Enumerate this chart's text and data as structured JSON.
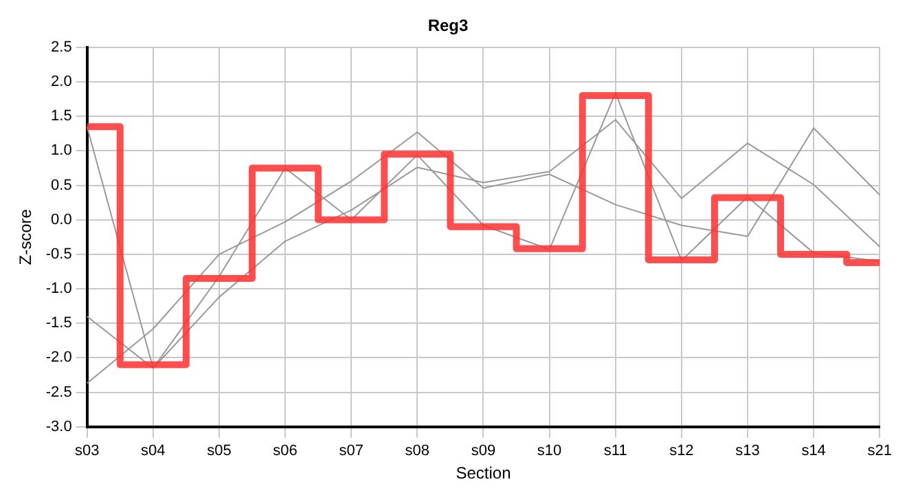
{
  "chart_data": {
    "type": "line",
    "title": "Reg3",
    "xlabel": "Section",
    "ylabel": "Z-score",
    "categories": [
      "s03",
      "s04",
      "s05",
      "s06",
      "s07",
      "s08",
      "s09",
      "s10",
      "s11",
      "s12",
      "s13",
      "s14",
      "s21"
    ],
    "series": [
      {
        "color": "#999999",
        "values": [
          1.35,
          -2.15,
          -0.82,
          0.75,
          0.0,
          0.94,
          -0.08,
          -0.43,
          1.84,
          -0.59,
          0.33,
          -0.48,
          -0.6
        ]
      },
      {
        "color": "#999999",
        "values": [
          -1.4,
          -2.15,
          -1.12,
          -0.31,
          0.14,
          0.76,
          0.54,
          0.7,
          1.45,
          0.31,
          1.11,
          0.51,
          -0.39
        ]
      },
      {
        "color": "#999999",
        "values": [
          -2.37,
          -1.58,
          -0.5,
          -0.03,
          0.56,
          1.27,
          0.46,
          0.66,
          0.22,
          -0.08,
          -0.24,
          1.33,
          0.36
        ]
      },
      {
        "type": "step",
        "color": "#ff3333",
        "values": [
          1.35,
          -2.1,
          -0.85,
          0.75,
          0.0,
          0.95,
          -0.1,
          -0.42,
          1.8,
          -0.58,
          0.32,
          -0.5,
          -0.62
        ]
      }
    ],
    "ylim": [
      -3.0,
      2.5
    ],
    "yticks": [
      {
        "value": -3.0,
        "label": "-3.0"
      },
      {
        "value": -2.5,
        "label": "-2.5"
      },
      {
        "value": -2.0,
        "label": "-2.0"
      },
      {
        "value": -1.5,
        "label": "-1.5"
      },
      {
        "value": -1.0,
        "label": "-1.0"
      },
      {
        "value": -0.5,
        "label": "-0.5"
      },
      {
        "value": 0,
        "label": "0.0"
      },
      {
        "value": 0.5,
        "label": "0.5"
      },
      {
        "value": 1.0,
        "label": "1.0"
      },
      {
        "value": 1.5,
        "label": "1.5"
      },
      {
        "value": 2.0,
        "label": "2.0"
      },
      {
        "value": 2.5,
        "label": "2.5"
      }
    ],
    "grid": true,
    "legend": false,
    "marker": "none"
  }
}
